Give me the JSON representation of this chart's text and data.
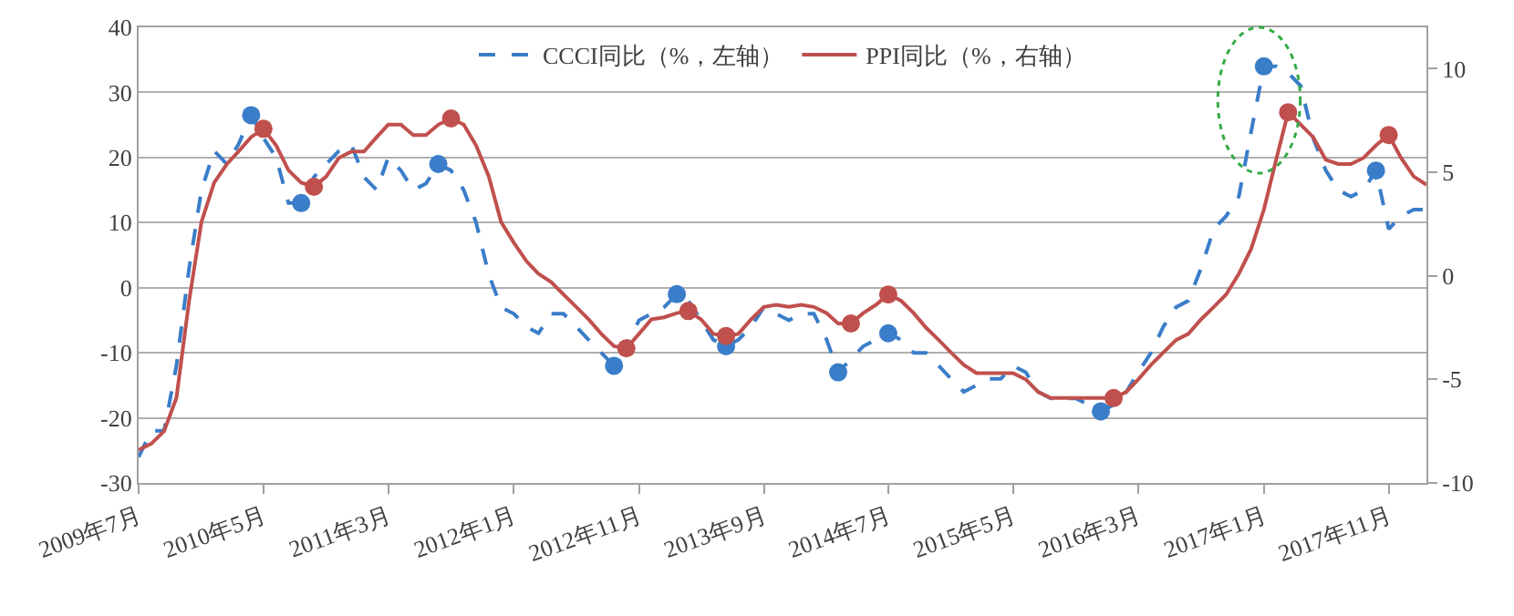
{
  "chart_data": {
    "type": "line",
    "x": [
      "2009-07",
      "2009-08",
      "2009-09",
      "2009-10",
      "2009-11",
      "2009-12",
      "2010-01",
      "2010-02",
      "2010-03",
      "2010-04",
      "2010-05",
      "2010-06",
      "2010-07",
      "2010-08",
      "2010-09",
      "2010-10",
      "2010-11",
      "2010-12",
      "2011-01",
      "2011-02",
      "2011-03",
      "2011-04",
      "2011-05",
      "2011-06",
      "2011-07",
      "2011-08",
      "2011-09",
      "2011-10",
      "2011-11",
      "2011-12",
      "2012-01",
      "2012-02",
      "2012-03",
      "2012-04",
      "2012-05",
      "2012-06",
      "2012-07",
      "2012-08",
      "2012-09",
      "2012-10",
      "2012-11",
      "2012-12",
      "2013-01",
      "2013-02",
      "2013-03",
      "2013-04",
      "2013-05",
      "2013-06",
      "2013-07",
      "2013-08",
      "2013-09",
      "2013-10",
      "2013-11",
      "2013-12",
      "2014-01",
      "2014-02",
      "2014-03",
      "2014-04",
      "2014-05",
      "2014-06",
      "2014-07",
      "2014-08",
      "2014-09",
      "2014-10",
      "2014-11",
      "2014-12",
      "2015-01",
      "2015-02",
      "2015-03",
      "2015-04",
      "2015-05",
      "2015-06",
      "2015-07",
      "2015-08",
      "2015-09",
      "2015-10",
      "2015-11",
      "2015-12",
      "2016-01",
      "2016-02",
      "2016-03",
      "2016-04",
      "2016-05",
      "2016-06",
      "2016-07",
      "2016-08",
      "2016-09",
      "2016-10",
      "2016-11",
      "2016-12",
      "2017-01",
      "2017-02",
      "2017-03",
      "2017-04",
      "2017-05",
      "2017-06",
      "2017-07",
      "2017-08",
      "2017-09",
      "2017-10",
      "2017-11",
      "2017-12",
      "2018-01",
      "2018-02"
    ],
    "series": [
      {
        "name": "CCCI同比（%，左轴）",
        "color": "#3a7dc9",
        "line_style": "dashed",
        "values": [
          -26,
          -22,
          -22,
          -12,
          3,
          15,
          21,
          19,
          22,
          26.5,
          23,
          20,
          13,
          13,
          17,
          19,
          21,
          22,
          17,
          15,
          20,
          18,
          15,
          16,
          19,
          18,
          15,
          10,
          2,
          -3,
          -4,
          -6,
          -7,
          -4,
          -4,
          -6,
          -8,
          -10,
          -12,
          -9,
          -5,
          -4,
          -3,
          -1,
          -2,
          -5,
          -8,
          -9,
          -8,
          -6,
          -3,
          -4,
          -5,
          -4,
          -4,
          -8,
          -13,
          -11,
          -9,
          -8,
          -7,
          -8,
          -10,
          -10,
          -12,
          -14,
          -16,
          -15,
          -14,
          -14,
          -12,
          -13,
          -16,
          -17,
          -17,
          -17,
          -18,
          -19,
          -18,
          -16,
          -13,
          -10,
          -6,
          -3,
          -2,
          3,
          9,
          11,
          14,
          24,
          34,
          34,
          33,
          31,
          23,
          18,
          15,
          14,
          15,
          18,
          9,
          11,
          12,
          12
        ]
      },
      {
        "name": "PPI同比（%，右轴）",
        "color": "#c0504d",
        "line_style": "solid",
        "axis": "y2",
        "values": [
          -8.4,
          -8.1,
          -7.5,
          -5.9,
          -1.2,
          2.6,
          4.5,
          5.4,
          6.0,
          6.7,
          7.1,
          6.3,
          5.1,
          4.5,
          4.3,
          4.8,
          5.7,
          6.0,
          6.0,
          6.7,
          7.3,
          7.3,
          6.8,
          6.8,
          7.3,
          7.6,
          7.3,
          6.3,
          4.8,
          2.6,
          1.6,
          0.7,
          0.1,
          -0.3,
          -0.9,
          -1.5,
          -2.1,
          -2.8,
          -3.4,
          -3.5,
          -2.8,
          -2.1,
          -2.0,
          -1.8,
          -1.7,
          -2.1,
          -2.8,
          -2.9,
          -2.8,
          -2.1,
          -1.5,
          -1.4,
          -1.5,
          -1.4,
          -1.5,
          -1.8,
          -2.3,
          -2.3,
          -1.8,
          -1.4,
          -0.9,
          -1.2,
          -1.8,
          -2.5,
          -3.1,
          -3.7,
          -4.3,
          -4.7,
          -4.7,
          -4.7,
          -4.7,
          -5.0,
          -5.6,
          -5.9,
          -5.9,
          -5.9,
          -5.9,
          -5.9,
          -5.9,
          -5.6,
          -5.0,
          -4.3,
          -3.7,
          -3.1,
          -2.8,
          -2.1,
          -1.5,
          -0.9,
          0.1,
          1.3,
          3.2,
          5.7,
          7.9,
          7.3,
          6.7,
          5.6,
          5.4,
          5.4,
          5.7,
          6.3,
          6.8,
          5.7,
          4.8,
          4.4
        ]
      },
      {
        "type": "scatter",
        "color": "#3a7dc9",
        "marker": "circle",
        "x": [
          "2010-04",
          "2010-08",
          "2011-07",
          "2012-09",
          "2013-02",
          "2013-06",
          "2014-03",
          "2014-07",
          "2015-12",
          "2017-01",
          "2017-10"
        ],
        "values": [
          26.5,
          13,
          19,
          -12,
          -1,
          -9,
          -13,
          -7,
          -19,
          34,
          18
        ]
      },
      {
        "type": "scatter",
        "color": "#c0504d",
        "marker": "circle",
        "axis": "y2",
        "x": [
          "2010-05",
          "2010-09",
          "2011-08",
          "2012-10",
          "2013-03",
          "2013-06",
          "2014-04",
          "2014-07",
          "2016-01",
          "2017-03",
          "2017-11"
        ],
        "values": [
          7.1,
          4.3,
          7.6,
          -3.5,
          -1.7,
          -2.9,
          -2.3,
          -0.9,
          -5.9,
          7.9,
          6.8
        ]
      }
    ],
    "xlim": [
      "2009-07",
      "2018-02"
    ],
    "xticks": [
      {
        "value": "2009-07",
        "label": "2009年7月"
      },
      {
        "value": "2010-05",
        "label": "2010年5月"
      },
      {
        "value": "2011-03",
        "label": "2011年3月"
      },
      {
        "value": "2012-01",
        "label": "2012年1月"
      },
      {
        "value": "2012-11",
        "label": "2012年11月"
      },
      {
        "value": "2013-09",
        "label": "2013年9月"
      },
      {
        "value": "2014-07",
        "label": "2014年7月"
      },
      {
        "value": "2015-05",
        "label": "2015年5月"
      },
      {
        "value": "2016-03",
        "label": "2016年3月"
      },
      {
        "value": "2017-01",
        "label": "2017年1月"
      },
      {
        "value": "2017-11",
        "label": "2017年11月"
      }
    ],
    "ylim": [
      -30,
      40
    ],
    "yticks": [
      -30,
      -20,
      -10,
      0,
      10,
      20,
      30,
      40
    ],
    "y2lim": [
      -10,
      12
    ],
    "y2ticks": [
      -10,
      -5,
      0,
      5,
      10
    ],
    "grid": "y",
    "legend": "top"
  }
}
